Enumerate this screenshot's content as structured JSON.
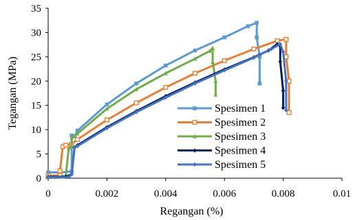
{
  "chart_data": {
    "type": "line",
    "title": "",
    "xlabel": "Regangan (%)",
    "ylabel": "Tegangan (MPa)",
    "xlim": [
      0,
      0.01
    ],
    "ylim": [
      0,
      35
    ],
    "x_ticks": [
      "0",
      "0.002",
      "0.004",
      "0.006",
      "0.008",
      "0.01"
    ],
    "x_tick_values": [
      0,
      0.002,
      0.004,
      0.006,
      0.008,
      0.01
    ],
    "y_ticks": [
      "0",
      "5",
      "10",
      "15",
      "20",
      "25",
      "30",
      "35"
    ],
    "y_tick_values": [
      0,
      5,
      10,
      15,
      20,
      25,
      30,
      35
    ],
    "grid": false,
    "legend_position": "bottom-right",
    "series": [
      {
        "name": "Spesimen 1",
        "color": "#5B9BD5",
        "marker": "square",
        "points": [
          [
            0,
            1.2
          ],
          [
            0.0004,
            1.2
          ],
          [
            0.0008,
            1.4
          ],
          [
            0.0008,
            8.8
          ],
          [
            0.0009,
            8.6
          ],
          [
            0.001,
            9.8
          ],
          [
            0.002,
            15.2
          ],
          [
            0.003,
            19.5
          ],
          [
            0.004,
            23.2
          ],
          [
            0.005,
            26.3
          ],
          [
            0.006,
            29.0
          ],
          [
            0.0068,
            31.3
          ],
          [
            0.0071,
            32.0
          ],
          [
            0.0071,
            29.0
          ],
          [
            0.0072,
            25.0
          ],
          [
            0.0072,
            19.5
          ]
        ]
      },
      {
        "name": "Spesimen 2",
        "color": "#ED7D31",
        "marker": "square-open",
        "points": [
          [
            0,
            0.5
          ],
          [
            0.0004,
            0.6
          ],
          [
            0.0004,
            1.5
          ],
          [
            0.0005,
            6.5
          ],
          [
            0.0006,
            6.8
          ],
          [
            0.0008,
            7.0
          ],
          [
            0.001,
            8.0
          ],
          [
            0.002,
            12.0
          ],
          [
            0.003,
            15.5
          ],
          [
            0.004,
            18.7
          ],
          [
            0.005,
            21.6
          ],
          [
            0.006,
            24.2
          ],
          [
            0.007,
            26.6
          ],
          [
            0.0078,
            28.3
          ],
          [
            0.0081,
            28.6
          ],
          [
            0.0081,
            25.0
          ],
          [
            0.0082,
            20.0
          ],
          [
            0.0082,
            13.5
          ]
        ]
      },
      {
        "name": "Spesimen 3",
        "color": "#70AD47",
        "marker": "triangle",
        "points": [
          [
            0,
            0.2
          ],
          [
            0.0005,
            0.3
          ],
          [
            0.0006,
            0.5
          ],
          [
            0.0007,
            6.2
          ],
          [
            0.0008,
            6.5
          ],
          [
            0.0008,
            8.4
          ],
          [
            0.001,
            9.2
          ],
          [
            0.002,
            14.3
          ],
          [
            0.003,
            18.3
          ],
          [
            0.004,
            21.6
          ],
          [
            0.005,
            24.6
          ],
          [
            0.0055,
            26.2
          ],
          [
            0.0056,
            26.8
          ],
          [
            0.0056,
            24.0
          ],
          [
            0.0057,
            20.0
          ],
          [
            0.0057,
            17.2
          ]
        ]
      },
      {
        "name": "Spesimen 4",
        "color": "#002060",
        "marker": "diamond",
        "points": [
          [
            0,
            0.3
          ],
          [
            0.0006,
            0.3
          ],
          [
            0.0008,
            0.8
          ],
          [
            0.0009,
            6.3
          ],
          [
            0.001,
            6.8
          ],
          [
            0.002,
            10.5
          ],
          [
            0.003,
            13.8
          ],
          [
            0.004,
            16.9
          ],
          [
            0.005,
            19.7
          ],
          [
            0.006,
            22.4
          ],
          [
            0.007,
            24.9
          ],
          [
            0.0075,
            26.3
          ],
          [
            0.0078,
            27.6
          ],
          [
            0.0079,
            27.2
          ],
          [
            0.0079,
            24.0
          ],
          [
            0.008,
            18.0
          ],
          [
            0.008,
            14.5
          ]
        ]
      },
      {
        "name": "Spesimen 5",
        "color": "#4472C4",
        "marker": "diamond",
        "points": [
          [
            0,
            0.2
          ],
          [
            0.0007,
            0.2
          ],
          [
            0.0008,
            0.8
          ],
          [
            0.0009,
            6.4
          ],
          [
            0.001,
            6.6
          ],
          [
            0.002,
            10.3
          ],
          [
            0.003,
            13.6
          ],
          [
            0.004,
            16.6
          ],
          [
            0.005,
            19.5
          ],
          [
            0.006,
            22.2
          ],
          [
            0.007,
            24.8
          ],
          [
            0.0076,
            26.6
          ],
          [
            0.0079,
            27.6
          ],
          [
            0.008,
            26.0
          ],
          [
            0.0081,
            20.0
          ],
          [
            0.0081,
            14.0
          ]
        ]
      }
    ]
  }
}
